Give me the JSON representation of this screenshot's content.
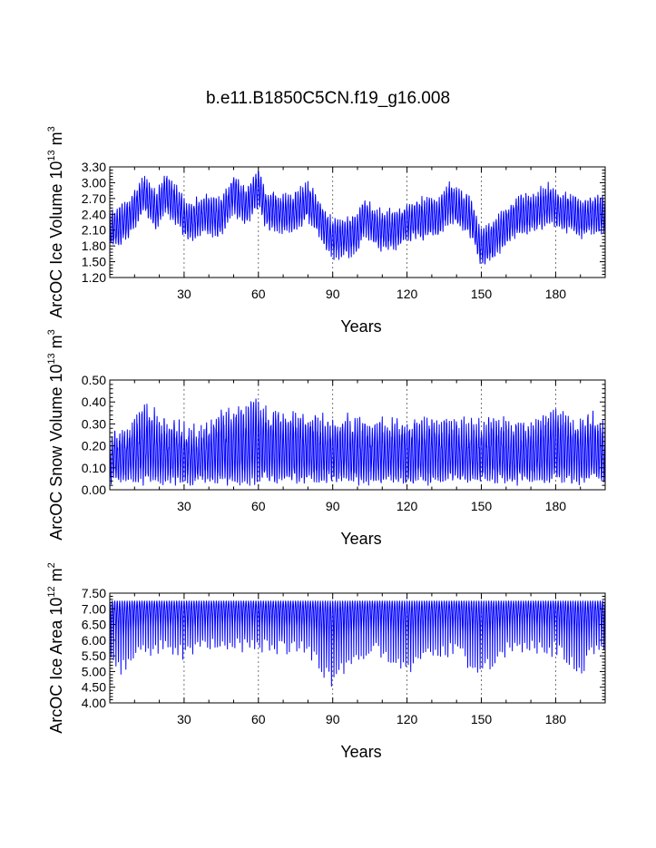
{
  "title": "b.e11.B1850C5CN.f19_g16.008",
  "chart_data": [
    {
      "type": "line",
      "xlabel": "Years",
      "ylabel_parts": [
        "ArcOC Ice Volume 10",
        "13",
        " m",
        "3"
      ],
      "xlim": [
        0,
        200
      ],
      "ylim": [
        1.2,
        3.3
      ],
      "xticks": [
        30,
        60,
        90,
        120,
        150,
        180
      ],
      "xtick_labels": [
        "30",
        "60",
        "90",
        "120",
        "150",
        "180"
      ],
      "yticks": [
        1.2,
        1.5,
        1.8,
        2.1,
        2.4,
        2.7,
        3.0,
        3.3
      ],
      "ytick_labels": [
        "1.20",
        "1.50",
        "1.80",
        "2.10",
        "2.40",
        "2.70",
        "3.00",
        "3.30"
      ],
      "grid": "vertical dashed at major x ticks",
      "line_color": "#0000ff",
      "series": [
        {
          "name": "ArcOC Ice Volume",
          "seasonal_amplitude": 0.62,
          "annual_mean_anchors_x": [
            0,
            3,
            8,
            14,
            19,
            22,
            27,
            32,
            38,
            45,
            50,
            55,
            58,
            60,
            63,
            70,
            75,
            80,
            85,
            88,
            90,
            95,
            100,
            103,
            108,
            115,
            120,
            128,
            133,
            137,
            142,
            146,
            148,
            150,
            155,
            160,
            166,
            172,
            178,
            182,
            186,
            190,
            195,
            200
          ],
          "annual_mean_anchors_y": [
            2.1,
            2.15,
            2.35,
            2.8,
            2.45,
            2.8,
            2.55,
            2.25,
            2.4,
            2.35,
            2.8,
            2.55,
            2.75,
            2.9,
            2.5,
            2.4,
            2.45,
            2.65,
            2.3,
            2.05,
            1.95,
            1.95,
            2.05,
            2.35,
            2.1,
            2.1,
            2.25,
            2.35,
            2.35,
            2.65,
            2.45,
            2.35,
            2.0,
            1.75,
            1.95,
            2.2,
            2.4,
            2.45,
            2.6,
            2.45,
            2.45,
            2.3,
            2.4,
            2.4
          ]
        }
      ]
    },
    {
      "type": "line",
      "xlabel": "Years",
      "ylabel_parts": [
        "ArcOC Snow Volume 10",
        "13",
        " m",
        "3"
      ],
      "xlim": [
        0,
        200
      ],
      "ylim": [
        0.0,
        0.5
      ],
      "xticks": [
        30,
        60,
        90,
        120,
        150,
        180
      ],
      "xtick_labels": [
        "30",
        "60",
        "90",
        "120",
        "150",
        "180"
      ],
      "yticks": [
        0.0,
        0.1,
        0.2,
        0.3,
        0.4,
        0.5
      ],
      "ytick_labels": [
        "0.00",
        "0.10",
        "0.20",
        "0.30",
        "0.40",
        "0.50"
      ],
      "grid": "vertical dashed at major x ticks",
      "line_color": "#0000ff",
      "series": [
        {
          "name": "ArcOC Snow Volume",
          "seasonal_range": [
            0.05,
            0.26
          ],
          "annual_peak_anchors_x": [
            0,
            5,
            10,
            15,
            20,
            25,
            30,
            35,
            40,
            45,
            50,
            55,
            58,
            62,
            70,
            80,
            90,
            100,
            110,
            120,
            130,
            140,
            150,
            155,
            160,
            170,
            175,
            180,
            185,
            190,
            195,
            200
          ],
          "annual_peak_anchors_y": [
            0.22,
            0.25,
            0.3,
            0.36,
            0.3,
            0.28,
            0.26,
            0.24,
            0.28,
            0.33,
            0.34,
            0.34,
            0.4,
            0.34,
            0.32,
            0.31,
            0.28,
            0.3,
            0.28,
            0.28,
            0.3,
            0.29,
            0.28,
            0.3,
            0.28,
            0.27,
            0.31,
            0.36,
            0.32,
            0.28,
            0.33,
            0.26
          ]
        }
      ]
    },
    {
      "type": "line",
      "xlabel": "Years",
      "ylabel_parts": [
        "ArcOC Ice Area 10",
        "12",
        " m",
        "2"
      ],
      "xlim": [
        0,
        200
      ],
      "ylim": [
        4.0,
        7.5
      ],
      "xticks": [
        30,
        60,
        90,
        120,
        150,
        180
      ],
      "xtick_labels": [
        "30",
        "60",
        "90",
        "120",
        "150",
        "180"
      ],
      "yticks": [
        4.0,
        4.5,
        5.0,
        5.5,
        6.0,
        6.5,
        7.0,
        7.5
      ],
      "ytick_labels": [
        "4.00",
        "4.50",
        "5.00",
        "5.50",
        "6.00",
        "6.50",
        "7.00",
        "7.50"
      ],
      "grid": "vertical dashed at major x ticks",
      "line_color": "#0000ff",
      "series": [
        {
          "name": "ArcOC Ice Area",
          "seasonal_max": 7.25,
          "annual_min_anchors_x": [
            0,
            5,
            10,
            20,
            30,
            40,
            50,
            60,
            70,
            80,
            85,
            90,
            95,
            100,
            110,
            120,
            130,
            140,
            145,
            150,
            155,
            160,
            170,
            180,
            185,
            190,
            195,
            200
          ],
          "annual_min_anchors_y": [
            5.6,
            5.1,
            5.7,
            5.8,
            5.6,
            5.8,
            5.9,
            5.8,
            5.8,
            5.7,
            5.2,
            4.7,
            5.2,
            5.6,
            5.7,
            5.1,
            5.6,
            5.7,
            5.3,
            5.1,
            5.4,
            5.7,
            5.8,
            5.7,
            5.4,
            5.1,
            5.6,
            5.6
          ]
        }
      ]
    }
  ]
}
